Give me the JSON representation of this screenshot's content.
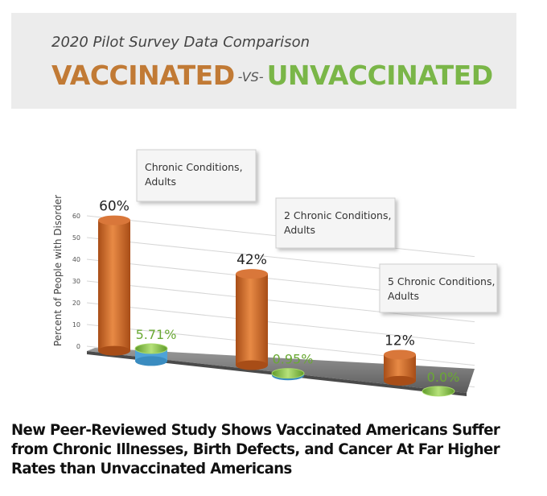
{
  "banner": {
    "subtitle": "2020 Pilot Survey Data Comparison",
    "left_word": "VACCINATED",
    "vs": "-VS-",
    "right_word": "UNVACCINATED"
  },
  "headline": "New Peer-Reviewed Study Shows Vaccinated Americans Suffer from Chronic Illnesses, Birth Defects, and Cancer At Far Higher Rates than Unvaccinated Americans",
  "colors": {
    "vaccinated": "#c8692a",
    "unvaccinated": "#8cc63f",
    "floor": "#7d7d7d"
  },
  "chart_data": {
    "type": "bar",
    "ylabel": "Percent of People with Disorder",
    "ylim": [
      0,
      60
    ],
    "yticks": [
      0,
      10,
      20,
      30,
      40,
      50,
      60
    ],
    "categories": [
      "Chronic Conditions, Adults",
      "2 Chronic Conditions, Adults",
      "5 Chronic Conditions, Adults"
    ],
    "category_lines": [
      [
        "Chronic Conditions,",
        "Adults"
      ],
      [
        "2 Chronic Conditions,",
        "Adults"
      ],
      [
        "5 Chronic Conditions,",
        "Adults"
      ]
    ],
    "series": [
      {
        "values": [
          60,
          42,
          12
        ],
        "labels": [
          "60%",
          "42%",
          "12%"
        ]
      },
      {
        "values": [
          5.71,
          0.95,
          0.0
        ],
        "labels": [
          "5.71%",
          "0.95%",
          "0.0%"
        ]
      }
    ],
    "grid": true,
    "legend": "none"
  }
}
